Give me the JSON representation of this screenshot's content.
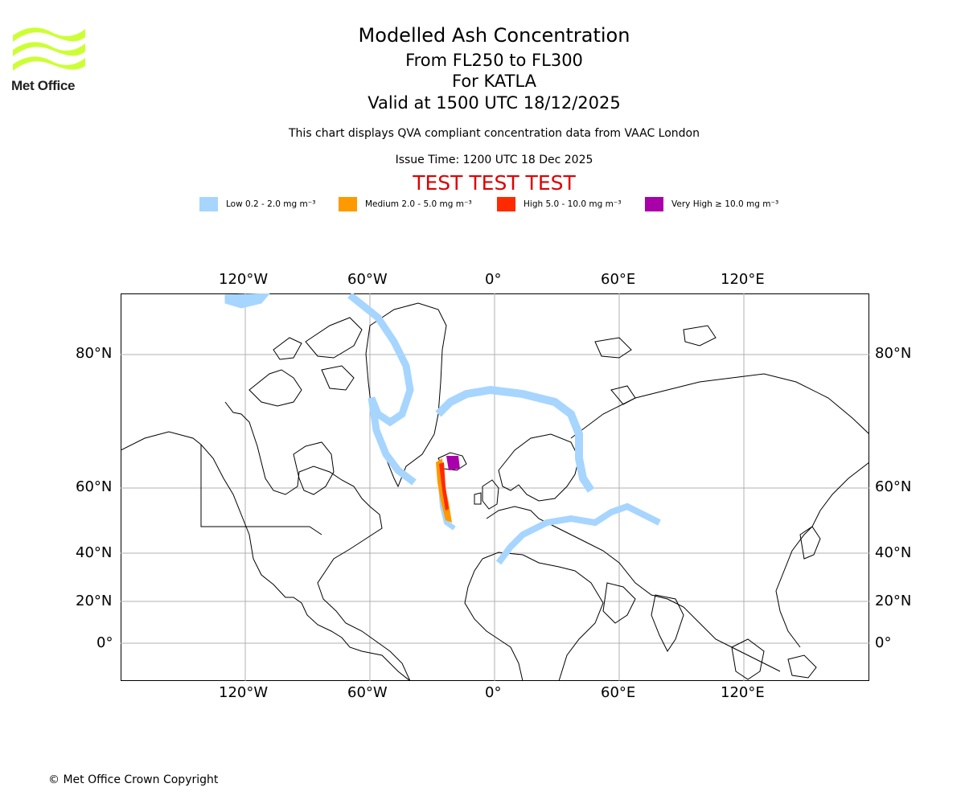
{
  "logo": {
    "text": "Met Office",
    "wave_color": "#ccff33"
  },
  "header": {
    "title": "Modelled Ash Concentration",
    "level_range": "From FL250 to FL300",
    "volcano": "For KATLA",
    "valid_time": "Valid at 1500 UTC 18/12/2025",
    "description": "This chart displays QVA compliant concentration data from VAAC London",
    "issue_time": "Issue Time: 1200 UTC 18 Dec 2025",
    "test_banner": "TEST TEST TEST"
  },
  "legend": [
    {
      "label": "Low 0.2 - 2.0 mg m⁻³",
      "color": "#a6d5ff"
    },
    {
      "label": "Medium 2.0 - 5.0 mg m⁻³",
      "color": "#ff9900"
    },
    {
      "label": "High 5.0 - 10.0 mg m⁻³",
      "color": "#ff2a00"
    },
    {
      "label": "Very High ≥ 10.0 mg m⁻³",
      "color": "#aa00aa"
    }
  ],
  "map": {
    "lon_labels": [
      "120°W",
      "60°W",
      "0°",
      "60°E",
      "120°E"
    ],
    "lat_labels": [
      "80°N",
      "60°N",
      "40°N",
      "20°N",
      "0°"
    ],
    "grid_color": "#b0b0b0"
  },
  "footer": {
    "copyright": "© Met Office Crown Copyright"
  }
}
